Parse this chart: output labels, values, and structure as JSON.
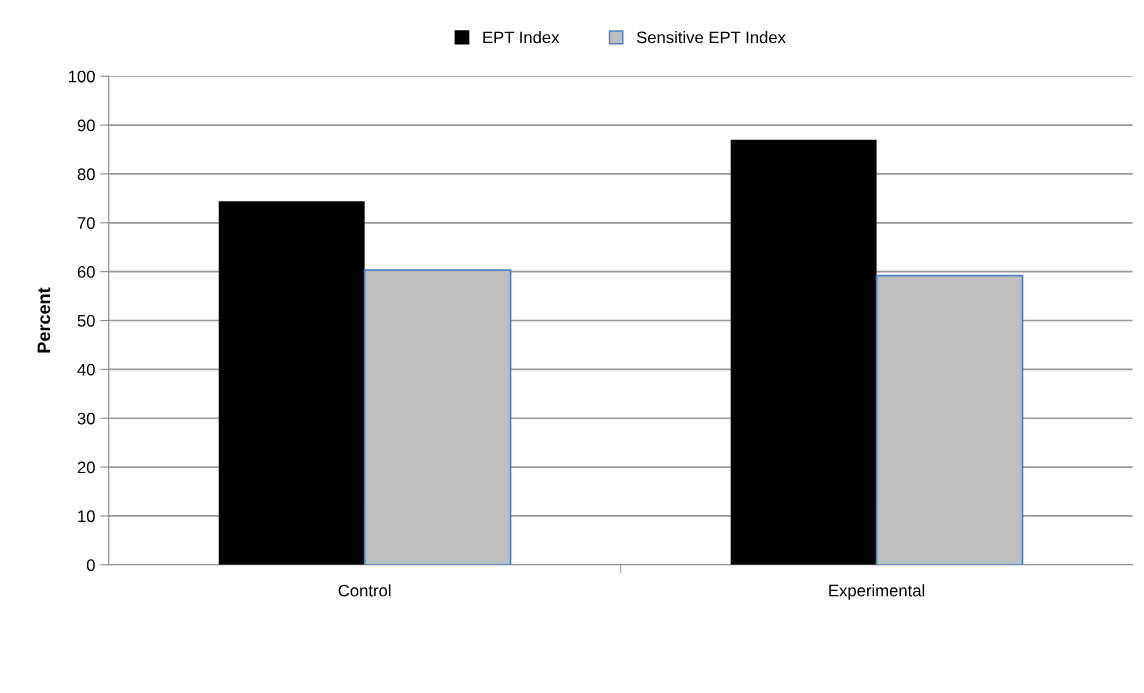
{
  "chart_data": {
    "type": "bar",
    "ylabel": "Percent",
    "categories": [
      "Control",
      "Experimental"
    ],
    "series": [
      {
        "name": "EPT Index",
        "color": "#000000",
        "values": [
          74.4,
          87.0
        ]
      },
      {
        "name": "Sensitive EPT Index",
        "color": "#bfbfbf",
        "values": [
          60.3,
          59.2
        ]
      }
    ],
    "ylim": [
      0,
      100
    ],
    "yticks": [
      0,
      10,
      20,
      30,
      40,
      50,
      60,
      70,
      80,
      90,
      100
    ],
    "grid": "y",
    "legend": "top"
  }
}
